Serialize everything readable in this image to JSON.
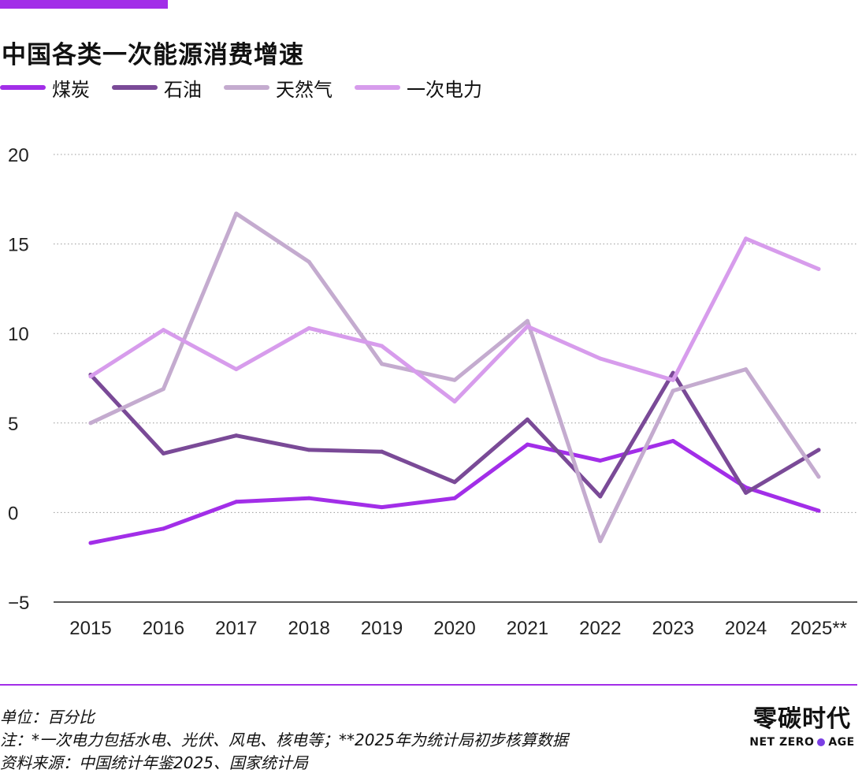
{
  "colors": {
    "accent": "#a22ee8",
    "footer_line": "#a22ee8",
    "grid": "#999999",
    "axis": "#222222"
  },
  "chart_data": {
    "type": "line",
    "title": "中国各类一次能源消费增速",
    "xlabel": "",
    "ylabel": "",
    "ylim": [
      -5,
      20
    ],
    "yticks": [
      "−5",
      "0",
      "5",
      "10",
      "15",
      "20"
    ],
    "ytick_values": [
      -5,
      0,
      5,
      10,
      15,
      20
    ],
    "categories": [
      "2015",
      "2016",
      "2017",
      "2018",
      "2019",
      "2020",
      "2021",
      "2022",
      "2023",
      "2024",
      "2025**"
    ],
    "grid": true,
    "legend_position": "top-left",
    "series": [
      {
        "name": "煤炭",
        "color": "#a22ee8",
        "values": [
          -1.7,
          -0.9,
          0.6,
          0.8,
          0.3,
          0.8,
          3.8,
          2.9,
          4.0,
          1.4,
          0.1
        ]
      },
      {
        "name": "石油",
        "color": "#7a4a97",
        "values": [
          7.7,
          3.3,
          4.3,
          3.5,
          3.4,
          1.7,
          5.2,
          0.9,
          7.8,
          1.1,
          3.5
        ]
      },
      {
        "name": "天然气",
        "color": "#c4abcf",
        "values": [
          5.0,
          6.9,
          16.7,
          14.0,
          8.3,
          7.4,
          10.7,
          -1.6,
          6.8,
          8.0,
          2.0
        ]
      },
      {
        "name": "一次电力",
        "color": "#d79cec",
        "values": [
          7.6,
          10.2,
          8.0,
          10.3,
          9.3,
          6.2,
          10.4,
          8.6,
          7.4,
          15.3,
          13.6
        ]
      }
    ]
  },
  "footer": {
    "unit": "单位：百分比",
    "note": "注：*一次电力包括水电、光伏、风电、核电等；**2025年为统计局初步核算数据",
    "source": "资料来源：中国统计年鉴2025、国家统计局"
  },
  "logo": {
    "cn": "零碳时代",
    "en_left": "NET ZERO",
    "en_right": "AGE",
    "dot_color": "#7b3fe4"
  }
}
